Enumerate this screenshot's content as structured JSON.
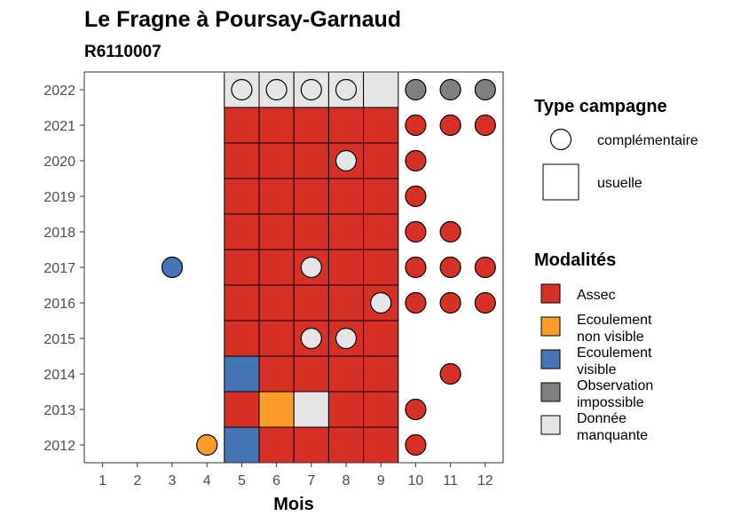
{
  "chart_data": {
    "type": "heatmap",
    "title": "Le Fragne à Poursay-Garnaud",
    "subtitle": "R6110007",
    "xlabel": "Mois",
    "ylabel": "",
    "x_ticks": [
      "1",
      "2",
      "3",
      "4",
      "5",
      "6",
      "7",
      "8",
      "9",
      "10",
      "11",
      "12"
    ],
    "y_ticks": [
      "2012",
      "2013",
      "2014",
      "2015",
      "2016",
      "2017",
      "2018",
      "2019",
      "2020",
      "2021",
      "2022"
    ],
    "colors": {
      "Assec": "#d73027",
      "Ecoulement non visible": "#fd9b2b",
      "Ecoulement visible": "#4575b4",
      "Observation impossible": "#808080",
      "Donnée manquante": "#e6e6e6"
    },
    "legend_type": {
      "title": "Type campagne",
      "items": [
        {
          "label": "complémentaire",
          "shape": "circle"
        },
        {
          "label": "usuelle",
          "shape": "square"
        }
      ]
    },
    "legend_modalites": {
      "title": "Modalités",
      "items": [
        {
          "key": "Assec",
          "lines": [
            "Assec"
          ]
        },
        {
          "key": "Ecoulement non visible",
          "lines": [
            "Ecoulement",
            "non visible"
          ]
        },
        {
          "key": "Ecoulement visible",
          "lines": [
            "Ecoulement",
            "visible"
          ]
        },
        {
          "key": "Observation impossible",
          "lines": [
            "Observation",
            "impossible"
          ]
        },
        {
          "key": "Donnée manquante",
          "lines": [
            "Donnée",
            "manquante"
          ]
        }
      ]
    },
    "usuelle": [
      {
        "year": "2012",
        "values": [
          "Ecoulement visible",
          "Assec",
          "Assec",
          "Assec",
          "Assec"
        ]
      },
      {
        "year": "2013",
        "values": [
          "Assec",
          "Ecoulement non visible",
          "Donnée manquante",
          "Assec",
          "Assec"
        ]
      },
      {
        "year": "2014",
        "values": [
          "Ecoulement visible",
          "Assec",
          "Assec",
          "Assec",
          "Assec"
        ]
      },
      {
        "year": "2015",
        "values": [
          "Assec",
          "Assec",
          "Assec",
          "Assec",
          "Assec"
        ]
      },
      {
        "year": "2016",
        "values": [
          "Assec",
          "Assec",
          "Assec",
          "Assec",
          "Assec"
        ]
      },
      {
        "year": "2017",
        "values": [
          "Assec",
          "Assec",
          "Assec",
          "Assec",
          "Assec"
        ]
      },
      {
        "year": "2018",
        "values": [
          "Assec",
          "Assec",
          "Assec",
          "Assec",
          "Assec"
        ]
      },
      {
        "year": "2019",
        "values": [
          "Assec",
          "Assec",
          "Assec",
          "Assec",
          "Assec"
        ]
      },
      {
        "year": "2020",
        "values": [
          "Assec",
          "Assec",
          "Assec",
          "Assec",
          "Assec"
        ]
      },
      {
        "year": "2021",
        "values": [
          "Assec",
          "Assec",
          "Assec",
          "Assec",
          "Assec"
        ]
      },
      {
        "year": "2022",
        "values": [
          "Donnée manquante",
          "Donnée manquante",
          "Donnée manquante",
          "Donnée manquante",
          "Donnée manquante"
        ]
      }
    ],
    "usuelle_months": [
      "5",
      "6",
      "7",
      "8",
      "9"
    ],
    "complementaire": [
      {
        "year": "2022",
        "month": "5",
        "value": "Donnée manquante"
      },
      {
        "year": "2022",
        "month": "6",
        "value": "Donnée manquante"
      },
      {
        "year": "2022",
        "month": "7",
        "value": "Donnée manquante"
      },
      {
        "year": "2022",
        "month": "8",
        "value": "Donnée manquante"
      },
      {
        "year": "2022",
        "month": "10",
        "value": "Observation impossible"
      },
      {
        "year": "2022",
        "month": "11",
        "value": "Observation impossible"
      },
      {
        "year": "2022",
        "month": "12",
        "value": "Observation impossible"
      },
      {
        "year": "2021",
        "month": "10",
        "value": "Assec"
      },
      {
        "year": "2021",
        "month": "11",
        "value": "Assec"
      },
      {
        "year": "2021",
        "month": "12",
        "value": "Assec"
      },
      {
        "year": "2020",
        "month": "8",
        "value": "Donnée manquante"
      },
      {
        "year": "2020",
        "month": "10",
        "value": "Assec"
      },
      {
        "year": "2019",
        "month": "10",
        "value": "Assec"
      },
      {
        "year": "2018",
        "month": "10",
        "value": "Assec"
      },
      {
        "year": "2018",
        "month": "11",
        "value": "Assec"
      },
      {
        "year": "2017",
        "month": "3",
        "value": "Ecoulement visible"
      },
      {
        "year": "2017",
        "month": "7",
        "value": "Donnée manquante"
      },
      {
        "year": "2017",
        "month": "10",
        "value": "Assec"
      },
      {
        "year": "2017",
        "month": "11",
        "value": "Assec"
      },
      {
        "year": "2017",
        "month": "12",
        "value": "Assec"
      },
      {
        "year": "2016",
        "month": "9",
        "value": "Donnée manquante"
      },
      {
        "year": "2016",
        "month": "10",
        "value": "Assec"
      },
      {
        "year": "2016",
        "month": "11",
        "value": "Assec"
      },
      {
        "year": "2016",
        "month": "12",
        "value": "Assec"
      },
      {
        "year": "2015",
        "month": "7",
        "value": "Donnée manquante"
      },
      {
        "year": "2015",
        "month": "8",
        "value": "Donnée manquante"
      },
      {
        "year": "2014",
        "month": "11",
        "value": "Assec"
      },
      {
        "year": "2013",
        "month": "10",
        "value": "Assec"
      },
      {
        "year": "2012",
        "month": "4",
        "value": "Ecoulement non visible"
      },
      {
        "year": "2012",
        "month": "10",
        "value": "Assec"
      }
    ]
  }
}
